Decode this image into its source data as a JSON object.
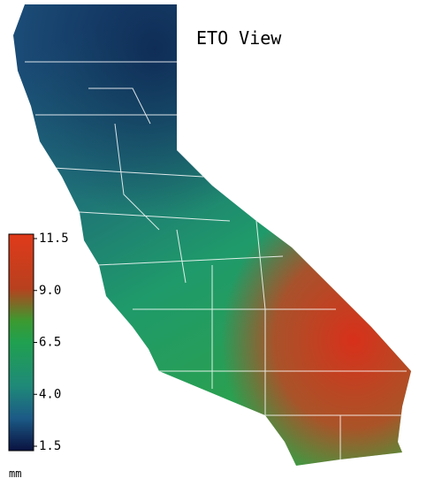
{
  "title": "ETO View",
  "legend": {
    "unit": "mm",
    "ticks": [
      11.5,
      {
        "value": 9,
        "label": "9.0"
      },
      6.5,
      {
        "value": 4,
        "label": "4.0"
      },
      1.5
    ]
  }
}
